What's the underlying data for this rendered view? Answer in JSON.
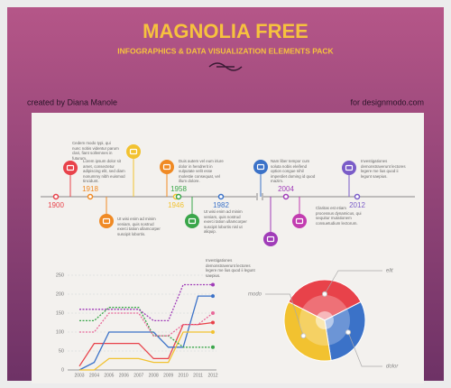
{
  "header": {
    "title": "MAGNOLIA FREE",
    "subtitle": "INFOGRAPHICS & DATA VISUALIZATION ELEMENTS PACK",
    "credit_left": "created by Diana Manole",
    "credit_right": "for designmodo.com"
  },
  "timeline": {
    "years": [
      {
        "label": "1900",
        "color": "#e8424a"
      },
      {
        "label": "1918",
        "color": "#f08a24"
      },
      {
        "label": "1946",
        "color": "#f2c230"
      },
      {
        "label": "1958",
        "color": "#3aa64a"
      },
      {
        "label": "1982",
        "color": "#3b72c8"
      },
      {
        "label": "2004",
        "color": "#a03cb8"
      },
      {
        "label": "2012",
        "color": "#7a5cc8"
      }
    ],
    "items": [
      {
        "color": "#e8424a",
        "text": "Lorem ipsum dolor sit amet, consectetur adipiscing elit, sed diam nonummy nibh euismod tincidunt."
      },
      {
        "color": "#f08a24",
        "text": "Ut wisi enim ad minim veniam, quis nostrud exerci tation ullamcorper suscipit lobortis."
      },
      {
        "color": "#f2c230",
        "text": "Cedem modo typi, qui nunc nobis videntur parum clari, fiant sollemnes in futurum."
      },
      {
        "color": "#f08a24",
        "text": "Duis autem vel eum iriure dolor in hendrerit in vulputate velit esse molestie consequat, vel illum dolore."
      },
      {
        "color": "#3aa64a",
        "text": "Ut wisi enim ad minim veniam, quis nostrud exerci tation ullamcorper suscipit lobortis nisl ut aliquip."
      },
      {
        "color": "#3b72c8",
        "text": "Nam liber tempor cum soluta nobis eleifend option congue nihil imperdiet doming id quod mazim."
      },
      {
        "color": "#a03cb8",
        "text": "Investigationes demonstraverunt lectores legere me lius quod ii legunt saepius."
      },
      {
        "color": "#c23cb0",
        "text": "Claritas est etiam processus dynamicus, qui sequitur mutationem consuetudium lectorum."
      },
      {
        "color": "#7a5cc8",
        "text": "Investigationes demonstraverunt lectores legere me lius quod ii legunt saepius."
      }
    ]
  },
  "line_chart": {
    "type": "line",
    "categories": [
      "2003",
      "2004",
      "2005",
      "2006",
      "2007",
      "2008",
      "2009",
      "2010",
      "2011",
      "2012"
    ],
    "ylim": [
      0,
      250
    ],
    "yticks": [
      0,
      50,
      100,
      150,
      200,
      250
    ],
    "grid": true,
    "series": [
      {
        "color": "#e8424a",
        "dashed": false,
        "values": [
          10,
          70,
          70,
          70,
          70,
          30,
          30,
          120,
          120,
          125
        ]
      },
      {
        "color": "#3b72c8",
        "dashed": false,
        "values": [
          0,
          20,
          100,
          100,
          100,
          100,
          60,
          60,
          195,
          195
        ]
      },
      {
        "color": "#f2c230",
        "dashed": false,
        "values": [
          0,
          0,
          30,
          30,
          30,
          20,
          20,
          100,
          100,
          100
        ]
      },
      {
        "color": "#3aa64a",
        "dashed": true,
        "values": [
          130,
          130,
          165,
          165,
          165,
          90,
          90,
          60,
          60,
          60
        ]
      },
      {
        "color": "#a03cb8",
        "dashed": true,
        "values": [
          160,
          160,
          160,
          160,
          160,
          130,
          130,
          225,
          225,
          225
        ]
      },
      {
        "color": "#e86a9a",
        "dashed": true,
        "values": [
          100,
          100,
          150,
          150,
          150,
          90,
          90,
          120,
          120,
          150
        ]
      }
    ]
  },
  "pie_chart": {
    "type": "pie",
    "categories": [
      "elit",
      "dolor",
      "modo"
    ],
    "values": [
      35,
      30,
      35
    ],
    "colors": [
      "#e8424a",
      "#3b72c8",
      "#f2c230"
    ]
  }
}
